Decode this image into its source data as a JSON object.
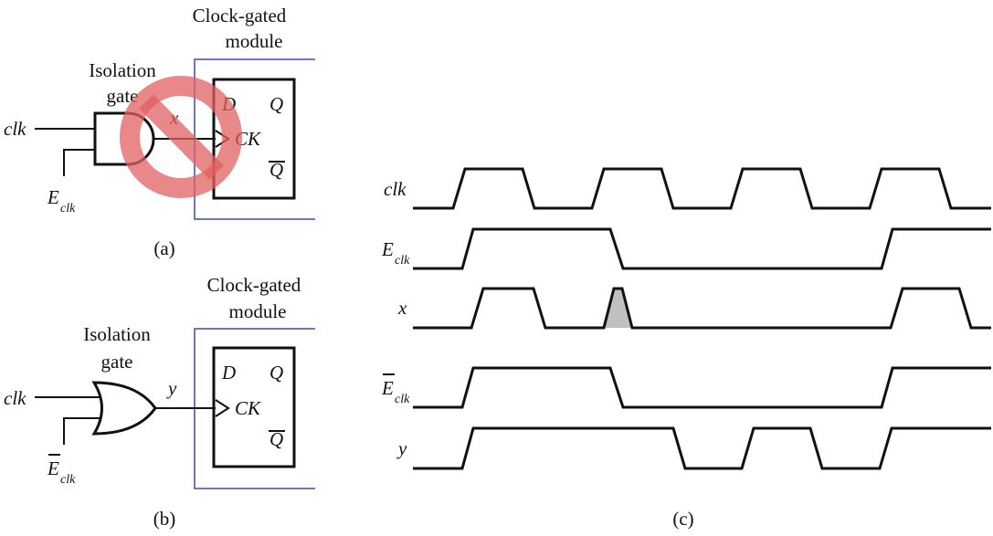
{
  "panel_a": {
    "caption": "(a)",
    "module_label_line1": "Clock-gated",
    "module_label_line2": "module",
    "gate_label_line1": "Isolation",
    "gate_label_line2": "gate",
    "input_clk": "clk",
    "input_enable": "E",
    "input_enable_sub": "clk",
    "output": "x",
    "ff_d": "D",
    "ff_q": "Q",
    "ff_ck": "CK",
    "ff_qbar": "Q",
    "gate_type": "AND",
    "prohibited": true,
    "prohibit_color": "#e06060"
  },
  "panel_b": {
    "caption": "(b)",
    "module_label_line1": "Clock-gated",
    "module_label_line2": "module",
    "gate_label_line1": "Isolation",
    "gate_label_line2": "gate",
    "input_clk": "clk",
    "input_enable": "E",
    "input_enable_sub": "clk",
    "input_enable_bar": true,
    "output": "y",
    "ff_d": "D",
    "ff_q": "Q",
    "ff_ck": "CK",
    "ff_qbar": "Q",
    "gate_type": "OR"
  },
  "panel_c": {
    "caption": "(c)",
    "signals": [
      {
        "name": "clk",
        "sub": ""
      },
      {
        "name": "E",
        "sub": "clk"
      },
      {
        "name": "x",
        "sub": ""
      },
      {
        "name": "E",
        "sub": "clk",
        "bar": true
      },
      {
        "name": "y",
        "sub": ""
      }
    ],
    "glitch_color": "#c0c0c0",
    "module_border_color": "#3a4aa8"
  }
}
